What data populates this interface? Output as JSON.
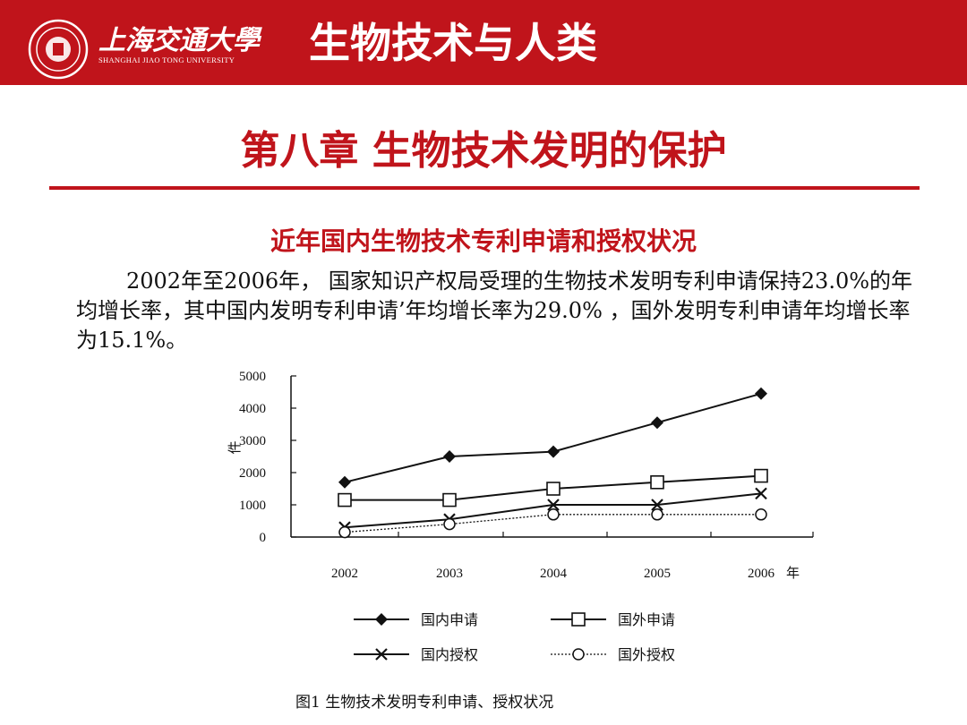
{
  "header": {
    "school_cn": "上海交通大學",
    "school_en": "SHANGHAI JIAO TONG UNIVERSITY",
    "course_title": "生物技术与人类",
    "logo_icon": "university-seal-icon"
  },
  "slide": {
    "chapter_title": "第八章  生物技术发明的保护",
    "subtitle": "近年国内生物技术专利申请和授权状况",
    "paragraph": "2002年至2006年， 国家知识产权局受理的生物技术发明专利申请保持23.0%的年均增长率，其中国内发明专利申请’年均增长率为29.0% ，国外发明专利申请年均增长率为15.1%。"
  },
  "colors": {
    "brand_red": "#c0141b",
    "text": "#111111"
  },
  "chart_data": {
    "type": "line",
    "title": "",
    "caption": "图1   生物技术发明专利申请、授权状况",
    "xlabel": "年",
    "ylabel": "件",
    "x": [
      "2002",
      "2003",
      "2004",
      "2005",
      "2006"
    ],
    "ylim": [
      0,
      5000
    ],
    "yticks": [
      0,
      1000,
      2000,
      3000,
      4000,
      5000
    ],
    "grid": false,
    "legend_position": "bottom",
    "series": [
      {
        "name": "国内申请",
        "marker": "diamond-filled",
        "line": "solid",
        "values": [
          1700,
          2500,
          2650,
          3550,
          4450
        ]
      },
      {
        "name": "国外申请",
        "marker": "square-open",
        "line": "solid",
        "values": [
          1150,
          1150,
          1500,
          1700,
          1900
        ]
      },
      {
        "name": "国内授权",
        "marker": "cross",
        "line": "solid",
        "values": [
          300,
          550,
          1000,
          1000,
          1350
        ]
      },
      {
        "name": "国外授权",
        "marker": "circle-open",
        "line": "dotted",
        "values": [
          150,
          400,
          700,
          700,
          700
        ]
      }
    ]
  }
}
